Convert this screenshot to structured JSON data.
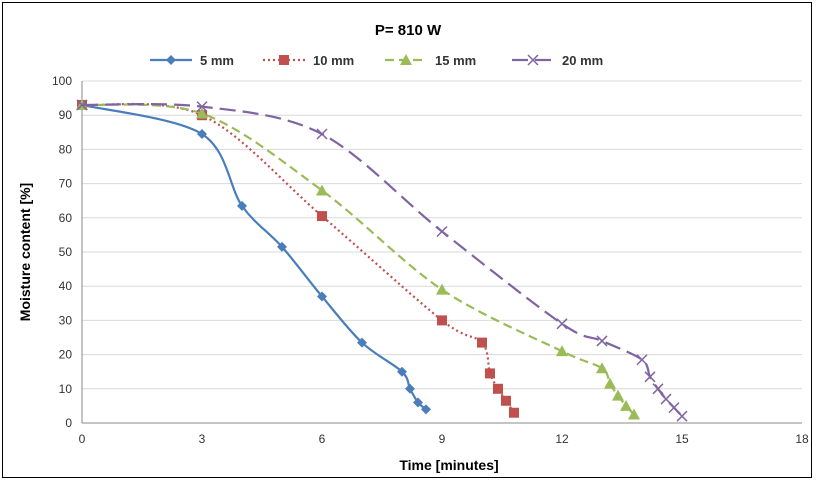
{
  "chart_data": {
    "type": "line",
    "title": "P= 810 W",
    "xlabel": "Time [minutes]",
    "ylabel": "Moisture content [%]",
    "xlim": [
      0,
      18
    ],
    "ylim": [
      0,
      100
    ],
    "xticks": [
      "0",
      "3",
      "6",
      "9",
      "12",
      "15",
      "18"
    ],
    "yticks": [
      "0",
      "10",
      "20",
      "30",
      "40",
      "50",
      "60",
      "70",
      "80",
      "90",
      "100"
    ],
    "grid": "horizontal",
    "legend_position": "top",
    "series": [
      {
        "name": "5 mm",
        "color": "#4a7ebb",
        "dash": "solid",
        "marker": "diamond",
        "x": [
          0,
          3,
          4,
          5,
          6,
          7,
          8,
          8.2,
          8.4,
          8.6
        ],
        "y": [
          93,
          84.5,
          63.5,
          51.5,
          37,
          23.5,
          15,
          10,
          6,
          4
        ]
      },
      {
        "name": "10 mm",
        "color": "#c0504d",
        "dash": "dotted",
        "marker": "square",
        "x": [
          0,
          3,
          6,
          9,
          10,
          10.2,
          10.4,
          10.6,
          10.8
        ],
        "y": [
          93,
          90,
          60.5,
          30,
          23.5,
          14.5,
          10,
          6.5,
          3
        ]
      },
      {
        "name": "15 mm",
        "color": "#9bbb59",
        "dash": "dashed",
        "marker": "triangle",
        "x": [
          0,
          3,
          6,
          9,
          12,
          13,
          13.2,
          13.4,
          13.6,
          13.8
        ],
        "y": [
          93,
          90.5,
          68,
          39,
          21,
          16,
          11.5,
          8,
          5,
          2.5
        ]
      },
      {
        "name": "20 mm",
        "color": "#8064a2",
        "dash": "longdash",
        "marker": "cross",
        "x": [
          0,
          3,
          6,
          9,
          12,
          13,
          14,
          14.2,
          14.4,
          14.6,
          14.8,
          15
        ],
        "y": [
          93,
          92.5,
          84.5,
          56,
          29,
          24,
          18.5,
          13.5,
          10,
          7,
          4.5,
          2
        ]
      }
    ]
  }
}
